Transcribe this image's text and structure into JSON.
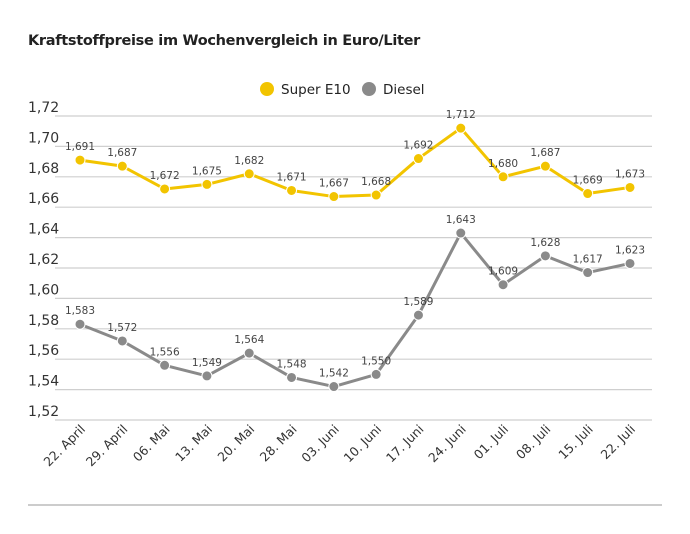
{
  "chart_data": {
    "type": "line",
    "title": "Kraftstoffpreise im Wochenvergleich in Euro/Liter",
    "xlabel": "",
    "ylabel": "",
    "categories": [
      "22. April",
      "29. April",
      "06. Mai",
      "13. Mai",
      "20. Mai",
      "28. Mai",
      "03. Juni",
      "10. Juni",
      "17. Juni",
      "24. Juni",
      "01. Juli",
      "08. Juli",
      "15. Juli",
      "22. Juli"
    ],
    "ylim": [
      1.52,
      1.72
    ],
    "yticks": [
      "1,52",
      "1,54",
      "1,56",
      "1,58",
      "1,60",
      "1,62",
      "1,64",
      "1,66",
      "1,68",
      "1,70",
      "1,72"
    ],
    "grid": true,
    "legend_position": "top-center",
    "series": [
      {
        "name": "Super E10",
        "color": "#f2c400",
        "values": [
          1.691,
          1.687,
          1.672,
          1.675,
          1.682,
          1.671,
          1.667,
          1.668,
          1.692,
          1.712,
          1.68,
          1.687,
          1.669,
          1.673
        ],
        "labels": [
          "1,691",
          "1,687",
          "1,672",
          "1,675",
          "1,682",
          "1,671",
          "1,667",
          "1,668",
          "1,692",
          "1,712",
          "1,680",
          "1,687",
          "1,669",
          "1,673"
        ]
      },
      {
        "name": "Diesel",
        "color": "#8a8a8a",
        "values": [
          1.583,
          1.572,
          1.556,
          1.549,
          1.564,
          1.548,
          1.542,
          1.55,
          1.589,
          1.643,
          1.609,
          1.628,
          1.617,
          1.623
        ],
        "labels": [
          "1,583",
          "1,572",
          "1,556",
          "1,549",
          "1,564",
          "1,548",
          "1,542",
          "1,550",
          "1,589",
          "1,643",
          "1,609",
          "1,628",
          "1,617",
          "1,623"
        ]
      }
    ]
  }
}
